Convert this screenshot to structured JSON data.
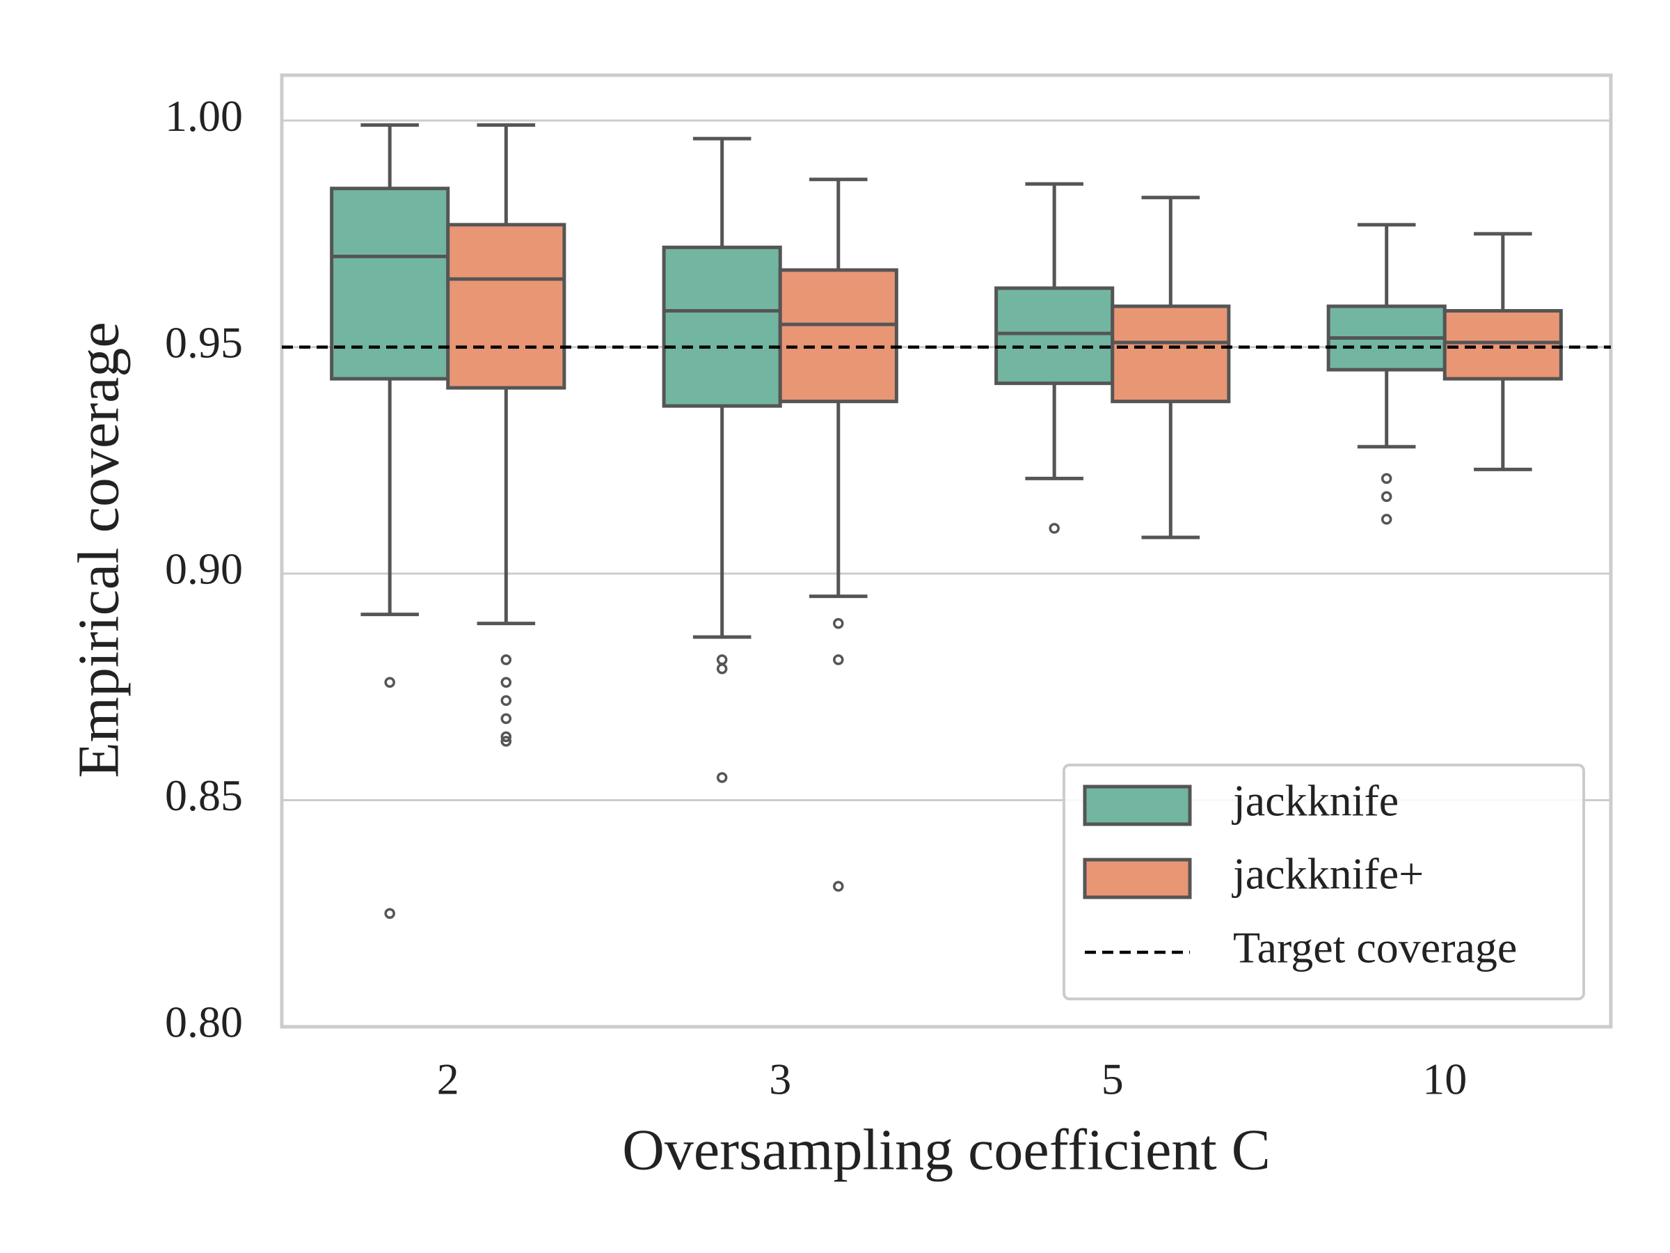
{
  "chart_data": {
    "type": "box",
    "xlabel": "Oversampling coefficient C",
    "ylabel": "Empirical coverage",
    "categories": [
      "2",
      "3",
      "5",
      "10"
    ],
    "ylim": [
      0.8,
      1.01
    ],
    "yticks": [
      {
        "value": 0.8,
        "label": "0.80"
      },
      0.85,
      {
        "value": 0.9,
        "label": "0.90"
      },
      0.95,
      {
        "value": 1.0,
        "label": "1.00"
      }
    ],
    "grid": true,
    "legend": "lower right",
    "series": [
      {
        "name": "jackknife",
        "color": "#72b6a1",
        "boxes": [
          {
            "whislo": 0.891,
            "q1": 0.943,
            "med": 0.97,
            "q3": 0.985,
            "whishi": 0.999,
            "fliers": [
              0.876,
              0.825
            ]
          },
          {
            "whislo": 0.886,
            "q1": 0.937,
            "med": 0.958,
            "q3": 0.972,
            "whishi": 0.996,
            "fliers": [
              0.881,
              0.879,
              0.855
            ]
          },
          {
            "whislo": 0.921,
            "q1": 0.942,
            "med": 0.953,
            "q3": 0.963,
            "whishi": 0.986,
            "fliers": [
              0.91
            ]
          },
          {
            "whislo": 0.928,
            "q1": 0.945,
            "med": 0.952,
            "q3": 0.959,
            "whishi": 0.977,
            "fliers": [
              0.921,
              0.917,
              0.912
            ]
          }
        ]
      },
      {
        "name": "jackknife+",
        "color": "#e99675",
        "boxes": [
          {
            "whislo": 0.889,
            "q1": 0.941,
            "med": 0.965,
            "q3": 0.977,
            "whishi": 0.999,
            "fliers": [
              0.881,
              0.876,
              0.872,
              0.868,
              0.864,
              0.863
            ]
          },
          {
            "whislo": 0.895,
            "q1": 0.938,
            "med": 0.955,
            "q3": 0.967,
            "whishi": 0.987,
            "fliers": [
              0.889,
              0.881,
              0.831
            ]
          },
          {
            "whislo": 0.908,
            "q1": 0.938,
            "med": 0.951,
            "q3": 0.959,
            "whishi": 0.983,
            "fliers": []
          },
          {
            "whislo": 0.923,
            "q1": 0.943,
            "med": 0.951,
            "q3": 0.958,
            "whishi": 0.975,
            "fliers": []
          }
        ]
      }
    ],
    "reference_line": {
      "value": 0.95,
      "label": "Target coverage",
      "color": "#000000"
    }
  }
}
